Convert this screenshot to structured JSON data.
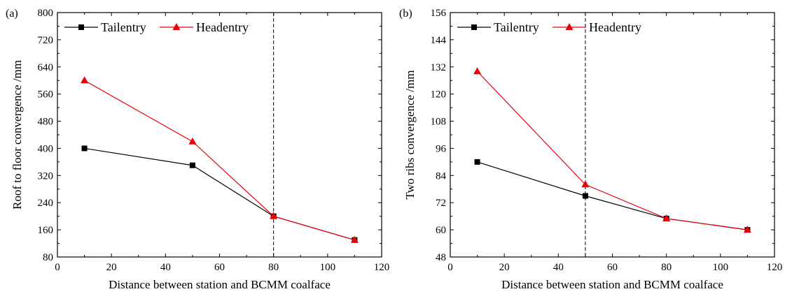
{
  "colors": {
    "tailentry": "#000000",
    "headentry": "#e8000b",
    "axis": "#000000"
  },
  "chart_data": [
    {
      "type": "line",
      "panel_label": "(a)",
      "xlabel": "Distance between station and BCMM coalface",
      "ylabel": "Roof  to floor convergence /mm",
      "xlim": [
        0,
        120
      ],
      "ylim": [
        80,
        800
      ],
      "xticks": [
        "0",
        "20",
        "40",
        "60",
        "80",
        "100",
        "120"
      ],
      "yticks": [
        "80",
        "160",
        "240",
        "320",
        "400",
        "480",
        "560",
        "640",
        "720",
        "800"
      ],
      "vline_x": 80,
      "legend_position": "top-left",
      "x": [
        10,
        50,
        80,
        110
      ],
      "series": [
        {
          "name": "Tailentry",
          "marker": "square-icon",
          "values": [
            400,
            350,
            200,
            130
          ]
        },
        {
          "name": "Headentry",
          "marker": "triangle-icon",
          "values": [
            600,
            420,
            200,
            130
          ]
        }
      ]
    },
    {
      "type": "line",
      "panel_label": "(b)",
      "xlabel": "Distance between station and BCMM coalface",
      "ylabel": "Two ribs convergence /mm",
      "xlim": [
        0,
        120
      ],
      "ylim": [
        48,
        156
      ],
      "xticks": [
        "0",
        "20",
        "40",
        "60",
        "80",
        "100",
        "120"
      ],
      "yticks": [
        "48",
        "60",
        "72",
        "84",
        "96",
        "108",
        "120",
        "132",
        "144",
        "156"
      ],
      "vline_x": 50,
      "legend_position": "top-left",
      "x": [
        10,
        50,
        80,
        110
      ],
      "series": [
        {
          "name": "Tailentry",
          "marker": "square-icon",
          "values": [
            90,
            75,
            65,
            60
          ]
        },
        {
          "name": "Headentry",
          "marker": "triangle-icon",
          "values": [
            130,
            80,
            65,
            60
          ]
        }
      ]
    }
  ]
}
